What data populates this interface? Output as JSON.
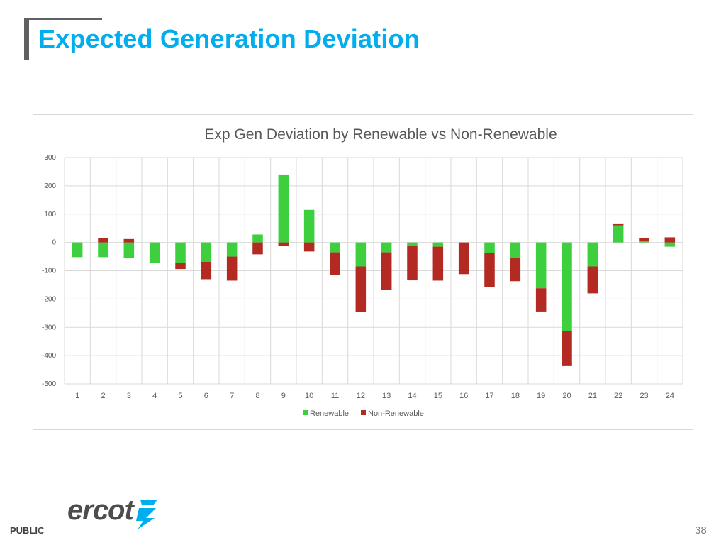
{
  "slide": {
    "title": "Expected Generation Deviation",
    "footer_label": "PUBLIC",
    "logo_text": "ercot",
    "page_number": "38",
    "accent_color": "#00aeef"
  },
  "chart_data": {
    "type": "bar",
    "stacked": true,
    "title": "Exp Gen Deviation by Renewable vs Non-Renewable",
    "xlabel": "",
    "ylabel": "",
    "ylim": [
      -500,
      300
    ],
    "yticks": [
      300,
      200,
      100,
      0,
      -100,
      -200,
      -300,
      -400,
      -500
    ],
    "grid": true,
    "legend": "bottom",
    "categories": [
      "1",
      "2",
      "3",
      "4",
      "5",
      "6",
      "7",
      "8",
      "9",
      "10",
      "11",
      "12",
      "13",
      "14",
      "15",
      "16",
      "17",
      "18",
      "19",
      "20",
      "21",
      "22",
      "23",
      "24"
    ],
    "series": [
      {
        "name": "Renewable",
        "color": "#3ecf3e",
        "values": [
          -52,
          -52,
          -55,
          -72,
          -72,
          -68,
          -50,
          28,
          240,
          115,
          -35,
          -85,
          -35,
          -12,
          -15,
          0,
          -38,
          -55,
          -162,
          -312,
          -85,
          60,
          5,
          -15
        ]
      },
      {
        "name": "Non-Renewable",
        "color": "#b22a22",
        "values": [
          0,
          15,
          12,
          0,
          -22,
          -62,
          -85,
          -42,
          -12,
          -32,
          -80,
          -160,
          -133,
          -122,
          -120,
          -112,
          -120,
          -82,
          -82,
          -125,
          -95,
          7,
          10,
          18
        ]
      }
    ]
  }
}
